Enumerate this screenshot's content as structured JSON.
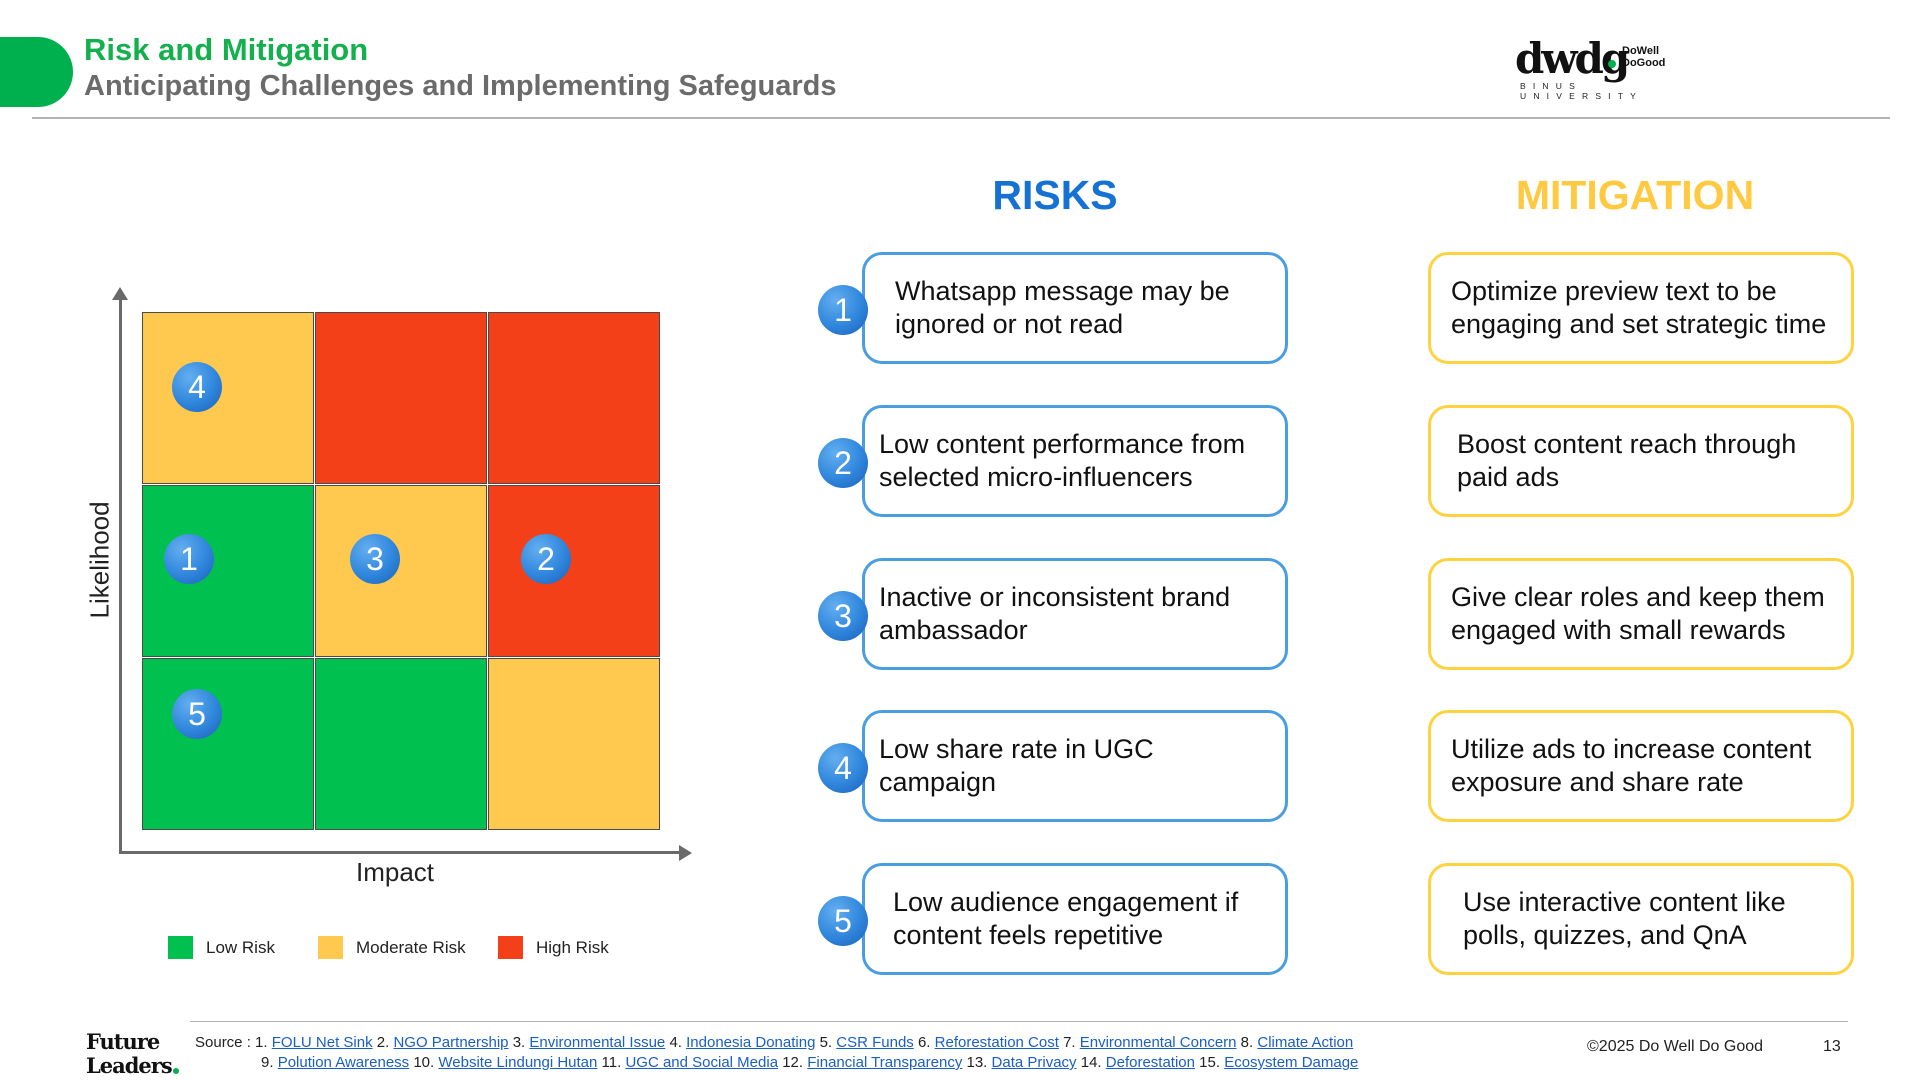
{
  "header": {
    "title": "Risk and Mitigation",
    "subtitle": "Anticipating Challenges and Implementing Safeguards",
    "logo": {
      "wordmark": "dwdg",
      "line1": "DoWell",
      "line2": "DoGood",
      "university": "BINUS UNIVERSITY",
      "accent_color": "#00b04f"
    }
  },
  "matrix": {
    "y_label": "Likelihood",
    "x_label": "Impact",
    "grid": [
      [
        "moderate",
        "high",
        "high"
      ],
      [
        "low",
        "moderate",
        "high"
      ],
      [
        "low",
        "low",
        "moderate"
      ]
    ],
    "badges": [
      {
        "number": "4",
        "row": 0,
        "col": 0
      },
      {
        "number": "1",
        "row": 1,
        "col": 0
      },
      {
        "number": "3",
        "row": 1,
        "col": 1
      },
      {
        "number": "2",
        "row": 1,
        "col": 2
      },
      {
        "number": "5",
        "row": 2,
        "col": 0
      }
    ],
    "legend": [
      {
        "label": "Low Risk",
        "color": "#00c04f"
      },
      {
        "label": "Moderate Risk",
        "color": "#ffc84f"
      },
      {
        "label": "High Risk",
        "color": "#f34018"
      }
    ]
  },
  "risks": {
    "heading": "RISKS",
    "items": [
      {
        "number": "1",
        "text": "Whatsapp message may be ignored or not read"
      },
      {
        "number": "2",
        "text": "Low content performance from selected micro-influencers"
      },
      {
        "number": "3",
        "text": "Inactive or inconsistent brand ambassador"
      },
      {
        "number": "4",
        "text": "Low share rate in UGC campaign"
      },
      {
        "number": "5",
        "text": "Low audience engagement if content feels repetitive"
      }
    ]
  },
  "mitigation": {
    "heading": "MITIGATION",
    "items": [
      "Optimize preview text to be engaging and set strategic time",
      "Boost content reach through paid ads",
      "Give clear roles and keep them engaged with small rewards",
      "Utilize ads to increase content exposure and share rate",
      "Use interactive content like polls, quizzes, and QnA"
    ]
  },
  "footer": {
    "brand_line1": "Future",
    "brand_line2": "Leaders",
    "source_label": "Source :",
    "sources_line1": [
      {
        "num": "1.",
        "text": "FOLU Net Sink"
      },
      {
        "num": "2.",
        "text": "NGO Partnership"
      },
      {
        "num": "3.",
        "text": "Environmental Issue"
      },
      {
        "num": "4.",
        "text": "Indonesia Donating"
      },
      {
        "num": "5.",
        "text": "CSR Funds"
      },
      {
        "num": "6.",
        "text": "Reforestation Cost"
      },
      {
        "num": "7.",
        "text": "Environmental Concern"
      },
      {
        "num": "8.",
        "text": "Climate Action"
      }
    ],
    "sources_line2": [
      {
        "num": "9.",
        "text": "Polution Awareness"
      },
      {
        "num": "10.",
        "text": "Website Lindungi Hutan"
      },
      {
        "num": "11.",
        "text": "UGC and Social Media"
      },
      {
        "num": "12.",
        "text": "Financial Transparency"
      },
      {
        "num": "13.",
        "text": "Data Privacy"
      },
      {
        "num": "14.",
        "text": "Deforestation"
      },
      {
        "num": "15.",
        "text": "Ecosystem Damage"
      }
    ],
    "copyright": "©2025 Do Well Do Good",
    "page_number": "13"
  }
}
